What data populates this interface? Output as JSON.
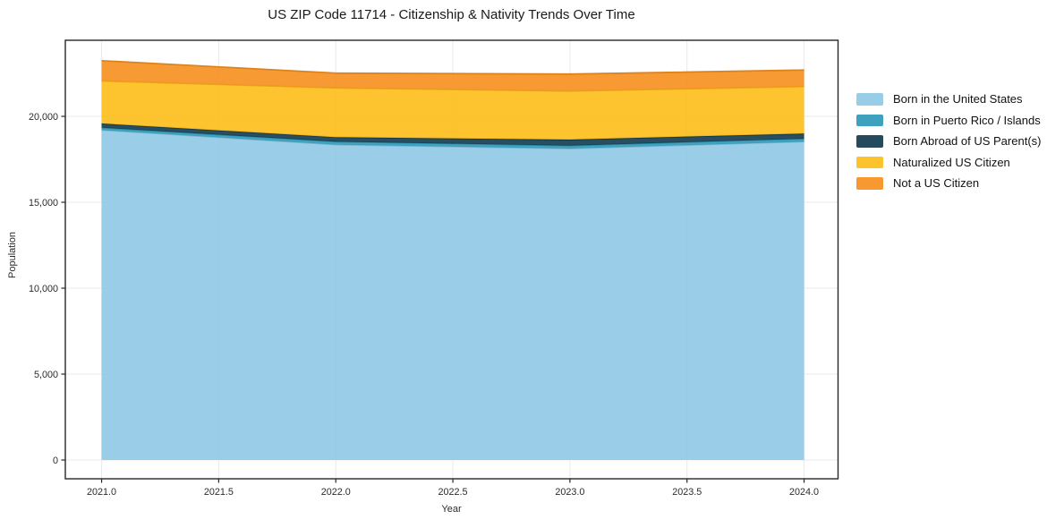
{
  "title": "US ZIP Code 11714 - Citizenship & Nativity Trends Over Time",
  "chart_data": {
    "type": "area",
    "stacked": true,
    "title": "US ZIP Code 11714 - Citizenship & Nativity Trends Over Time",
    "xlabel": "Year",
    "ylabel": "Population",
    "x": [
      2021,
      2022,
      2023,
      2024
    ],
    "series": [
      {
        "name": "Born in the United States",
        "color": "#8FC9E5",
        "values": [
          19200,
          18350,
          18125,
          18525
        ]
      },
      {
        "name": "Born in Puerto Rico / Islands",
        "color": "#2E9AB9",
        "values": [
          140,
          175,
          170,
          170
        ]
      },
      {
        "name": "Born Abroad of US Parent(s)",
        "color": "#123B4F",
        "values": [
          240,
          260,
          350,
          300
        ]
      },
      {
        "name": "Naturalized US Citizen",
        "color": "#FDBE1A",
        "values": [
          2480,
          2865,
          2825,
          2740
        ]
      },
      {
        "name": "Not a US Citizen",
        "color": "#F68F1E",
        "values": [
          1180,
          865,
          990,
          960
        ]
      }
    ],
    "totals": [
      23240,
      22515,
      22460,
      22695
    ],
    "xlim": [
      2020.845,
      2024.145
    ],
    "ylim": [
      -1094,
      24427
    ],
    "xticks": {
      "values": [
        2021.0,
        2021.5,
        2022.0,
        2022.5,
        2023.0,
        2023.5,
        2024.0
      ],
      "labels": [
        "2021.0",
        "2021.5",
        "2022.0",
        "2022.5",
        "2023.0",
        "2023.5",
        "2024.0"
      ]
    },
    "yticks": {
      "values": [
        0,
        5000,
        10000,
        15000,
        20000
      ],
      "labels": [
        "0",
        "5,000",
        "10,000",
        "15,000",
        "20,000"
      ]
    },
    "grid": true,
    "grid_color": "#E9E9E9",
    "border_color": "#262626",
    "fill_opacity": 0.9,
    "legend_position": "right-outside"
  }
}
